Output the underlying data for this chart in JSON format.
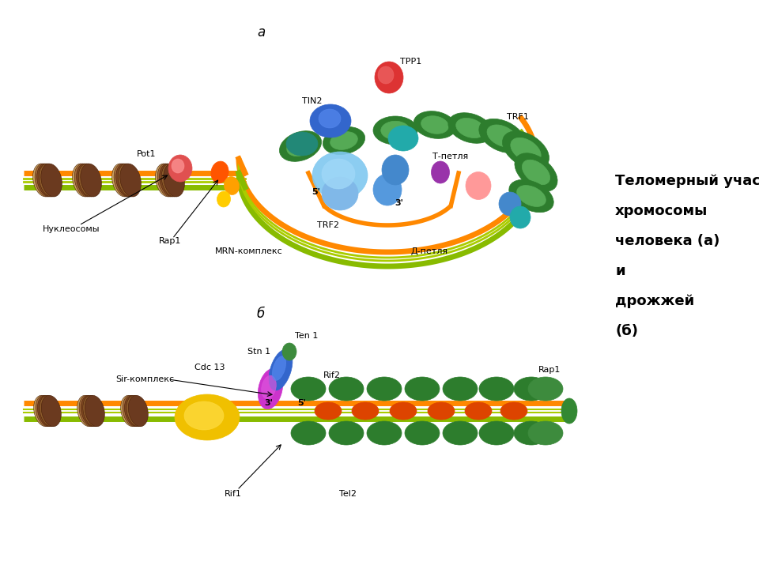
{
  "background_color": "#ffffff",
  "label_a": "a",
  "label_b": "б",
  "side_text_lines": [
    "Теломерный участок",
    "хромосомы",
    "человека (а)",
    "и",
    "дрожжей",
    "(б)"
  ],
  "colors": {
    "orange": "#ff8800",
    "green_dna": "#88bb00",
    "yellow_green": "#aacc00",
    "dark_green": "#2d7d2d",
    "mid_green": "#3d8b3d",
    "light_green": "#55aa55",
    "blue": "#3366cc",
    "light_blue": "#80c8f0",
    "sky_blue": "#5599dd",
    "teal": "#228877",
    "teal2": "#22aaaa",
    "red": "#dd3333",
    "pink_red": "#e05050",
    "magenta": "#cc33cc",
    "yellow": "#f0c000",
    "orange_red": "#dd4400",
    "brown1": "#7a4520",
    "brown2": "#a0693a",
    "brown3": "#c8a060"
  }
}
